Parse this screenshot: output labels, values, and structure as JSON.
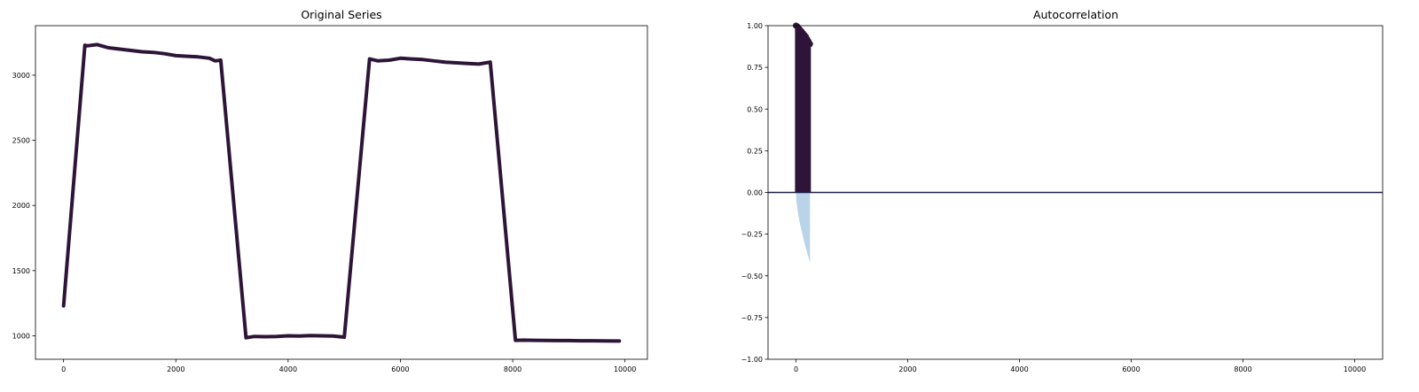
{
  "chart_data": [
    {
      "type": "line",
      "title": "Original Series",
      "xlabel": "",
      "ylabel": "",
      "xlim": [
        -500,
        10400
      ],
      "ylim": [
        820,
        3380
      ],
      "xticks": [
        0,
        2000,
        4000,
        6000,
        8000,
        10000
      ],
      "xtick_labels": [
        "0",
        "2000",
        "4000",
        "6000",
        "8000",
        "10000"
      ],
      "yticks": [
        1000,
        1500,
        2000,
        2500,
        3000
      ],
      "ytick_labels": [
        "1000",
        "1500",
        "2000",
        "2500",
        "3000"
      ],
      "grid": false,
      "color": "#2e1538",
      "series": [
        {
          "x": [
            0,
            380,
            420,
            600,
            800,
            1000,
            1200,
            1400,
            1600,
            1800,
            2000,
            2200,
            2400,
            2600,
            2700,
            2800,
            3250,
            3400,
            3600,
            3800,
            4000,
            4200,
            4400,
            4600,
            4800,
            5000,
            5450,
            5600,
            5800,
            6000,
            6200,
            6400,
            6600,
            6800,
            7000,
            7200,
            7400,
            7600,
            8050,
            8200,
            8400,
            8600,
            8800,
            9000,
            9200,
            9400,
            9600,
            9800,
            9900
          ],
          "y": [
            1230,
            3230,
            3225,
            3235,
            3210,
            3200,
            3190,
            3180,
            3175,
            3165,
            3150,
            3145,
            3140,
            3130,
            3110,
            3115,
            985,
            995,
            993,
            995,
            1000,
            998,
            1002,
            1000,
            998,
            990,
            3125,
            3110,
            3115,
            3130,
            3125,
            3120,
            3110,
            3100,
            3095,
            3090,
            3085,
            3100,
            965,
            967,
            965,
            964,
            963,
            963,
            962,
            962,
            961,
            960,
            960
          ]
        }
      ]
    },
    {
      "type": "bar",
      "title": "Autocorrelation",
      "xlabel": "",
      "ylabel": "",
      "xlim": [
        -500,
        10500
      ],
      "ylim": [
        -1.0,
        1.0
      ],
      "xticks": [
        0,
        2000,
        4000,
        6000,
        8000,
        10000
      ],
      "xtick_labels": [
        "0",
        "2000",
        "4000",
        "6000",
        "8000",
        "10000"
      ],
      "yticks": [
        -1.0,
        -0.75,
        -0.5,
        -0.25,
        0.0,
        0.25,
        0.5,
        0.75,
        1.0
      ],
      "ytick_labels": [
        "−1.00",
        "−0.75",
        "−0.50",
        "−0.25",
        "0.00",
        "0.25",
        "0.50",
        "0.75",
        "1.00"
      ],
      "grid": false,
      "bar_color": "#2e1538",
      "confidence_color": "#b9d3e8",
      "zero_line_color": "#1f1f4a",
      "acf": {
        "lags": [
          0,
          25,
          50,
          75,
          100,
          125,
          150,
          175,
          200,
          225,
          250
        ],
        "values": [
          1.0,
          0.995,
          0.985,
          0.975,
          0.965,
          0.955,
          0.945,
          0.935,
          0.92,
          0.905,
          0.89
        ]
      },
      "confidence_band": {
        "lags": [
          0,
          10,
          30,
          60,
          100,
          150,
          200,
          250
        ],
        "lower": [
          0.0,
          -0.06,
          -0.11,
          -0.17,
          -0.23,
          -0.3,
          -0.36,
          -0.42
        ]
      }
    }
  ]
}
